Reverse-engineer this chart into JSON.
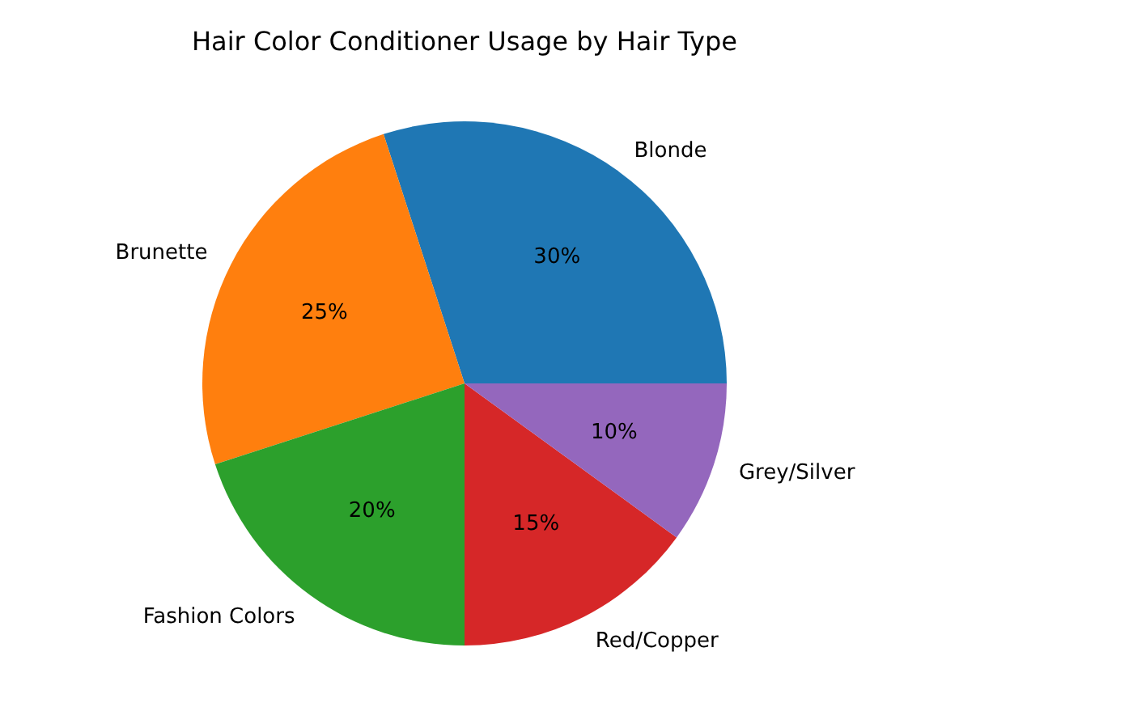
{
  "chart_data": {
    "type": "pie",
    "title": "Hair Color Conditioner Usage by Hair Type",
    "categories": [
      "Blonde",
      "Brunette",
      "Fashion Colors",
      "Red/Copper",
      "Grey/Silver"
    ],
    "values": [
      30,
      25,
      20,
      15,
      10
    ],
    "value_labels": [
      "30%",
      "25%",
      "20%",
      "15%",
      "10%"
    ],
    "colors": [
      "#1f77b4",
      "#ff7f0e",
      "#2ca02c",
      "#d62728",
      "#9467bd"
    ],
    "legend": false
  }
}
